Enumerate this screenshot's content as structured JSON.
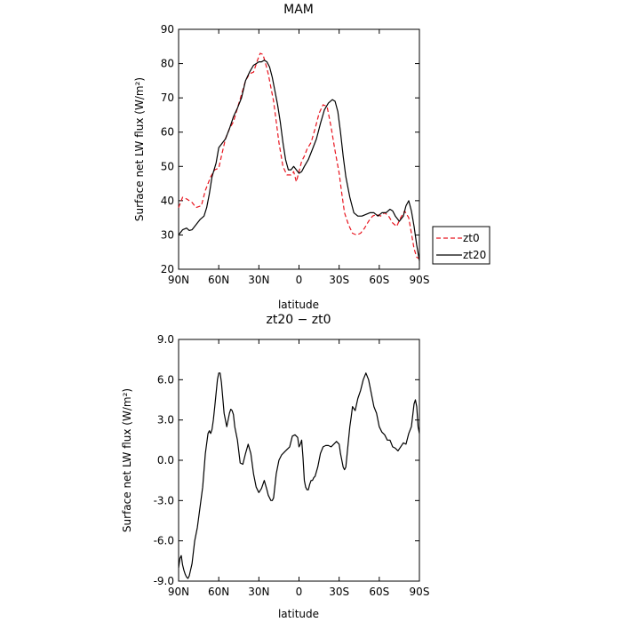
{
  "chart_data": [
    {
      "type": "line",
      "title": "MAM",
      "xlabel": "latitude",
      "ylabel": "Surface net LW flux (W/m²)",
      "xlim": [
        90,
        -90
      ],
      "ylim": [
        20,
        90
      ],
      "x_ticks": [
        90,
        60,
        30,
        0,
        -30,
        -60,
        -90
      ],
      "x_tick_labels": [
        "90N",
        "60N",
        "30N",
        "0",
        "30S",
        "60S",
        "90S"
      ],
      "y_ticks": [
        20,
        30,
        40,
        50,
        60,
        70,
        80,
        90
      ],
      "y_tick_labels": [
        "20",
        "30",
        "40",
        "50",
        "60",
        "70",
        "80",
        "90"
      ],
      "legend": "right",
      "grid": false,
      "series": [
        {
          "name": "zt0",
          "color": "#e8141e",
          "dash": "dashed",
          "x": [
            90,
            87,
            84,
            80,
            77,
            73,
            70,
            66,
            63,
            60,
            58,
            55,
            52,
            49,
            46,
            43,
            40,
            37,
            34,
            31,
            29,
            27,
            25,
            23,
            21,
            19,
            17,
            15,
            12,
            9,
            6,
            4,
            2,
            0,
            -2,
            -4,
            -6,
            -9,
            -12,
            -15,
            -18,
            -21,
            -24,
            -27,
            -30,
            -32,
            -34,
            -37,
            -40,
            -43,
            -46,
            -49,
            -52,
            -55,
            -58,
            -61,
            -64,
            -67,
            -70,
            -73,
            -76,
            -79,
            -82,
            -84,
            -86,
            -88,
            -90
          ],
          "y": [
            38,
            41,
            40.5,
            39.5,
            38,
            38.5,
            43,
            47,
            49,
            49.5,
            53,
            58,
            61,
            63,
            67,
            71,
            75,
            77,
            77.5,
            81,
            83,
            82.7,
            80,
            77,
            73,
            69,
            63,
            57,
            50,
            47.5,
            47.5,
            48.5,
            45.5,
            48.5,
            51.5,
            53,
            55,
            57,
            61,
            65.5,
            68,
            67.5,
            61.5,
            54.5,
            48,
            42,
            36.5,
            33,
            30.5,
            30,
            30.5,
            32,
            34,
            35.5,
            36,
            35.5,
            36.5,
            35.5,
            33.5,
            32.5,
            35,
            37,
            35,
            30.5,
            26,
            23.5,
            23
          ]
        },
        {
          "name": "zt20",
          "color": "#000000",
          "dash": "solid",
          "x": [
            90,
            87,
            84,
            82,
            80,
            77,
            74,
            71,
            69,
            67,
            65,
            62,
            60,
            58,
            55,
            52,
            49,
            46,
            43,
            40,
            37,
            34,
            32,
            30,
            28,
            26,
            24,
            22,
            20,
            18,
            16,
            14,
            12,
            10,
            8,
            6,
            4,
            2,
            0,
            -2,
            -4,
            -7,
            -10,
            -13,
            -16,
            -19,
            -22,
            -25,
            -27,
            -29,
            -31,
            -33,
            -35,
            -38,
            -41,
            -44,
            -47,
            -50,
            -53,
            -56,
            -59,
            -62,
            -65,
            -68,
            -70,
            -72,
            -75,
            -78,
            -80,
            -82,
            -84,
            -86,
            -88,
            -90
          ],
          "y": [
            30,
            31.5,
            32,
            31.3,
            31.5,
            33,
            34.5,
            35.5,
            38,
            42,
            47,
            51,
            55.5,
            56.5,
            58,
            61,
            64.5,
            67,
            70,
            75,
            77.5,
            79.5,
            80,
            80.5,
            80.5,
            81,
            80.5,
            79,
            76,
            72,
            68,
            63,
            57,
            52,
            49,
            49,
            50,
            49,
            48,
            48.5,
            50,
            52,
            55,
            58,
            62.5,
            66.5,
            68.5,
            69.5,
            69,
            66,
            60,
            53,
            47,
            41,
            36.5,
            35.5,
            35.5,
            36,
            36.5,
            36.5,
            35.5,
            36.5,
            36.5,
            37.5,
            37,
            35.5,
            34,
            35.5,
            38.5,
            40,
            37,
            32.5,
            27,
            22.5
          ]
        }
      ]
    },
    {
      "type": "line",
      "title": "zt20 − zt0",
      "xlabel": "latitude",
      "ylabel": "Surface net LW flux (W/m²)",
      "xlim": [
        90,
        -90
      ],
      "ylim": [
        -9,
        9
      ],
      "x_ticks": [
        90,
        60,
        30,
        0,
        -30,
        -60,
        -90
      ],
      "x_tick_labels": [
        "90N",
        "60N",
        "30N",
        "0",
        "30S",
        "60S",
        "90S"
      ],
      "y_ticks": [
        -9,
        -6,
        -3,
        0,
        3,
        6,
        9
      ],
      "y_tick_labels": [
        "-9.0",
        "-6.0",
        "-3.0",
        "0.0",
        "3.0",
        "6.0",
        "9.0"
      ],
      "grid": false,
      "series": [
        {
          "color": "#000000",
          "dash": "solid",
          "x": [
            90,
            89,
            88,
            87,
            86,
            85,
            84,
            83,
            82,
            80,
            78,
            76,
            74,
            72,
            70,
            68,
            67,
            66,
            65,
            64,
            63,
            62,
            61,
            60,
            59,
            58,
            56,
            54,
            53,
            52,
            51,
            50,
            49,
            48,
            46,
            44,
            42,
            40,
            38,
            36,
            34,
            32,
            30,
            28,
            26,
            24,
            23,
            22,
            21,
            20,
            19,
            17,
            15,
            13,
            11,
            9,
            7,
            5,
            3,
            1,
            0,
            -1,
            -2,
            -3,
            -4,
            -5,
            -6,
            -7,
            -8,
            -9,
            -10,
            -11,
            -12,
            -14,
            -16,
            -18,
            -20,
            -22,
            -24,
            -26,
            -28,
            -30,
            -31,
            -32,
            -33,
            -34,
            -35,
            -36,
            -37,
            -38,
            -39,
            -40,
            -42,
            -44,
            -46,
            -48,
            -50,
            -52,
            -54,
            -56,
            -58,
            -59,
            -60,
            -62,
            -64,
            -66,
            -68,
            -70,
            -72,
            -74,
            -76,
            -78,
            -80,
            -82,
            -84,
            -86,
            -87,
            -88,
            -89,
            -90
          ],
          "y": [
            -8,
            -7.3,
            -7.1,
            -7.8,
            -8.2,
            -8.5,
            -8.7,
            -8.8,
            -8.6,
            -7.7,
            -6,
            -5,
            -3.5,
            -2,
            0.5,
            2,
            2.2,
            2,
            2.3,
            3,
            4,
            5,
            6,
            6.5,
            6.5,
            5.8,
            3.5,
            2.5,
            3,
            3.5,
            3.8,
            3.7,
            3.4,
            2.5,
            1.5,
            -0.2,
            -0.3,
            0.5,
            1.2,
            0.5,
            -1,
            -2,
            -2.4,
            -2.1,
            -1.5,
            -2.2,
            -2.6,
            -2.8,
            -3,
            -3,
            -2.8,
            -1,
            0,
            0.4,
            0.6,
            0.8,
            1,
            1.8,
            1.9,
            1.7,
            1,
            1.2,
            1.5,
            0.2,
            -1.5,
            -2,
            -2.2,
            -2.2,
            -1.8,
            -1.5,
            -1.5,
            -1.3,
            -1.2,
            -0.5,
            0.5,
            1,
            1.1,
            1.1,
            1,
            1.2,
            1.4,
            1.2,
            0.5,
            0,
            -0.5,
            -0.7,
            -0.5,
            0.5,
            1.5,
            2.5,
            3.2,
            4,
            3.7,
            4.6,
            5.2,
            6,
            6.5,
            6,
            5,
            4,
            3.5,
            3,
            2.5,
            2.1,
            1.9,
            1.5,
            1.5,
            1,
            0.9,
            0.7,
            1,
            1.3,
            1.2,
            2,
            2.5,
            4.2,
            4.5,
            4,
            2.5,
            2
          ]
        }
      ]
    }
  ]
}
